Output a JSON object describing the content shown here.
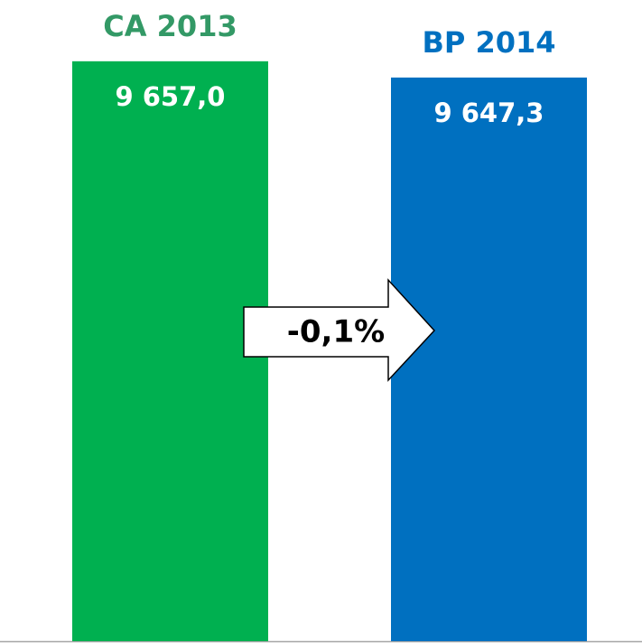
{
  "chart_data": {
    "type": "bar",
    "categories": [
      "CA 2013",
      "BP 2014"
    ],
    "values": [
      9657.0,
      9647.3
    ],
    "value_labels": [
      "9 657,0",
      "9 647,3"
    ],
    "colors": [
      "#00b050",
      "#0070c0"
    ],
    "label_colors": [
      "#339966",
      "#0070c0"
    ],
    "ylim": [
      9311,
      9672
    ],
    "annotation": "-0,1%"
  }
}
